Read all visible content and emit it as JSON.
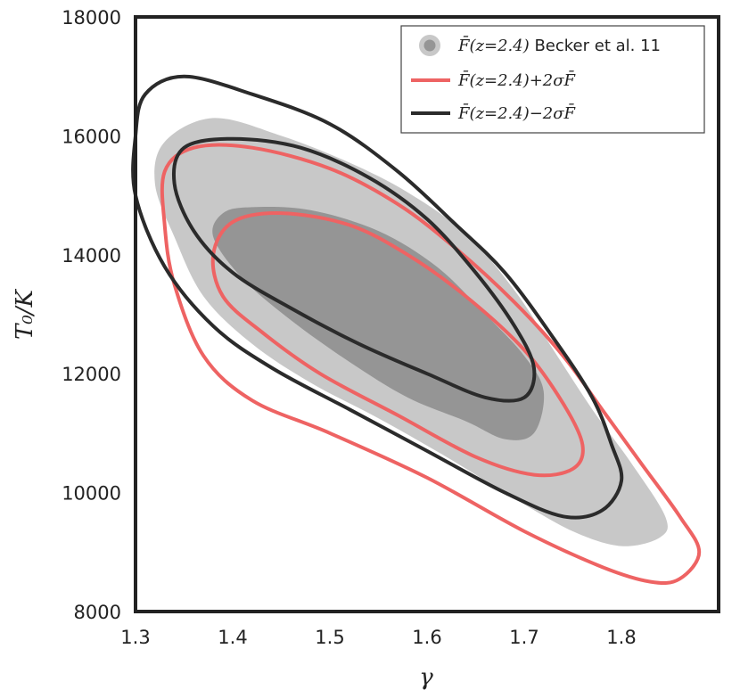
{
  "chart_data": {
    "type": "contour",
    "xlabel": "γ",
    "ylabel": "T₀/K",
    "xlim": [
      1.3,
      1.9
    ],
    "ylim": [
      8000,
      18000
    ],
    "xticks": [
      1.3,
      1.4,
      1.5,
      1.6,
      1.7,
      1.8
    ],
    "yticks": [
      8000,
      10000,
      12000,
      14000,
      16000,
      18000
    ],
    "xtick_labels": [
      "1.3",
      "1.4",
      "1.5",
      "1.6",
      "1.7",
      "1.8"
    ],
    "ytick_labels": [
      "8000",
      "10000",
      "12000",
      "14000",
      "16000",
      "18000"
    ],
    "grid": false,
    "legend_position": "top-right",
    "series": [
      {
        "name": "F̄(z=2.4) Becker et al. 11",
        "style": "filled",
        "color_outer": "#c8c8c8",
        "color_inner": "#959595",
        "contours": [
          [
            [
              1.38,
              16300
            ],
            [
              1.45,
              16000
            ],
            [
              1.52,
              15550
            ],
            [
              1.58,
              15050
            ],
            [
              1.64,
              14350
            ],
            [
              1.69,
              13400
            ],
            [
              1.73,
              12400
            ],
            [
              1.77,
              11400
            ],
            [
              1.81,
              10500
            ],
            [
              1.845,
              9600
            ],
            [
              1.84,
              9250
            ],
            [
              1.8,
              9100
            ],
            [
              1.75,
              9350
            ],
            [
              1.69,
              9900
            ],
            [
              1.62,
              10600
            ],
            [
              1.55,
              11250
            ],
            [
              1.48,
              11850
            ],
            [
              1.42,
              12500
            ],
            [
              1.37,
              13300
            ],
            [
              1.34,
              14300
            ],
            [
              1.32,
              15200
            ],
            [
              1.33,
              15900
            ],
            [
              1.38,
              16300
            ]
          ],
          [
            [
              1.42,
              14800
            ],
            [
              1.48,
              14750
            ],
            [
              1.55,
              14400
            ],
            [
              1.61,
              13800
            ],
            [
              1.66,
              13000
            ],
            [
              1.7,
              12300
            ],
            [
              1.72,
              11700
            ],
            [
              1.71,
              11000
            ],
            [
              1.68,
              10900
            ],
            [
              1.64,
              11200
            ],
            [
              1.58,
              11600
            ],
            [
              1.52,
              12200
            ],
            [
              1.46,
              12900
            ],
            [
              1.41,
              13600
            ],
            [
              1.38,
              14300
            ],
            [
              1.39,
              14700
            ],
            [
              1.42,
              14800
            ]
          ]
        ]
      },
      {
        "name": "F̄(z=2.4)+2σF̄",
        "style": "line",
        "color": "#ee6363",
        "contours": [
          [
            [
              1.33,
              15400
            ],
            [
              1.36,
              15800
            ],
            [
              1.42,
              15800
            ],
            [
              1.5,
              15450
            ],
            [
              1.57,
              14850
            ],
            [
              1.63,
              14100
            ],
            [
              1.69,
              13200
            ],
            [
              1.74,
              12300
            ],
            [
              1.78,
              11400
            ],
            [
              1.82,
              10500
            ],
            [
              1.86,
              9600
            ],
            [
              1.88,
              9000
            ],
            [
              1.86,
              8550
            ],
            [
              1.83,
              8500
            ],
            [
              1.78,
              8750
            ],
            [
              1.7,
              9350
            ],
            [
              1.6,
              10250
            ],
            [
              1.5,
              11000
            ],
            [
              1.42,
              11550
            ],
            [
              1.37,
              12300
            ],
            [
              1.34,
              13500
            ],
            [
              1.33,
              14500
            ],
            [
              1.33,
              15400
            ]
          ],
          [
            [
              1.4,
              14550
            ],
            [
              1.45,
              14700
            ],
            [
              1.52,
              14500
            ],
            [
              1.58,
              14000
            ],
            [
              1.64,
              13300
            ],
            [
              1.7,
              12400
            ],
            [
              1.74,
              11500
            ],
            [
              1.76,
              10800
            ],
            [
              1.75,
              10400
            ],
            [
              1.71,
              10300
            ],
            [
              1.65,
              10600
            ],
            [
              1.57,
              11300
            ],
            [
              1.49,
              12000
            ],
            [
              1.43,
              12700
            ],
            [
              1.39,
              13300
            ],
            [
              1.38,
              14000
            ],
            [
              1.4,
              14550
            ]
          ]
        ]
      },
      {
        "name": "F̄(z=2.4)−2σF̄",
        "style": "line",
        "color": "#2b2b2b",
        "contours": [
          [
            [
              1.31,
              16700
            ],
            [
              1.35,
              17000
            ],
            [
              1.42,
              16700
            ],
            [
              1.5,
              16200
            ],
            [
              1.57,
              15400
            ],
            [
              1.63,
              14500
            ],
            [
              1.68,
              13700
            ],
            [
              1.73,
              12600
            ],
            [
              1.77,
              11600
            ],
            [
              1.79,
              10800
            ],
            [
              1.8,
              10200
            ],
            [
              1.78,
              9700
            ],
            [
              1.74,
              9600
            ],
            [
              1.68,
              10000
            ],
            [
              1.6,
              10700
            ],
            [
              1.52,
              11400
            ],
            [
              1.44,
              12100
            ],
            [
              1.38,
              12800
            ],
            [
              1.33,
              13800
            ],
            [
              1.3,
              15000
            ],
            [
              1.3,
              16000
            ],
            [
              1.31,
              16700
            ]
          ],
          [
            [
              1.35,
              15800
            ],
            [
              1.4,
              15950
            ],
            [
              1.47,
              15800
            ],
            [
              1.54,
              15300
            ],
            [
              1.6,
              14600
            ],
            [
              1.65,
              13700
            ],
            [
              1.69,
              12800
            ],
            [
              1.71,
              12100
            ],
            [
              1.7,
              11600
            ],
            [
              1.66,
              11600
            ],
            [
              1.6,
              12000
            ],
            [
              1.53,
              12500
            ],
            [
              1.46,
              13100
            ],
            [
              1.4,
              13700
            ],
            [
              1.36,
              14400
            ],
            [
              1.34,
              15200
            ],
            [
              1.35,
              15800
            ]
          ]
        ]
      }
    ]
  }
}
